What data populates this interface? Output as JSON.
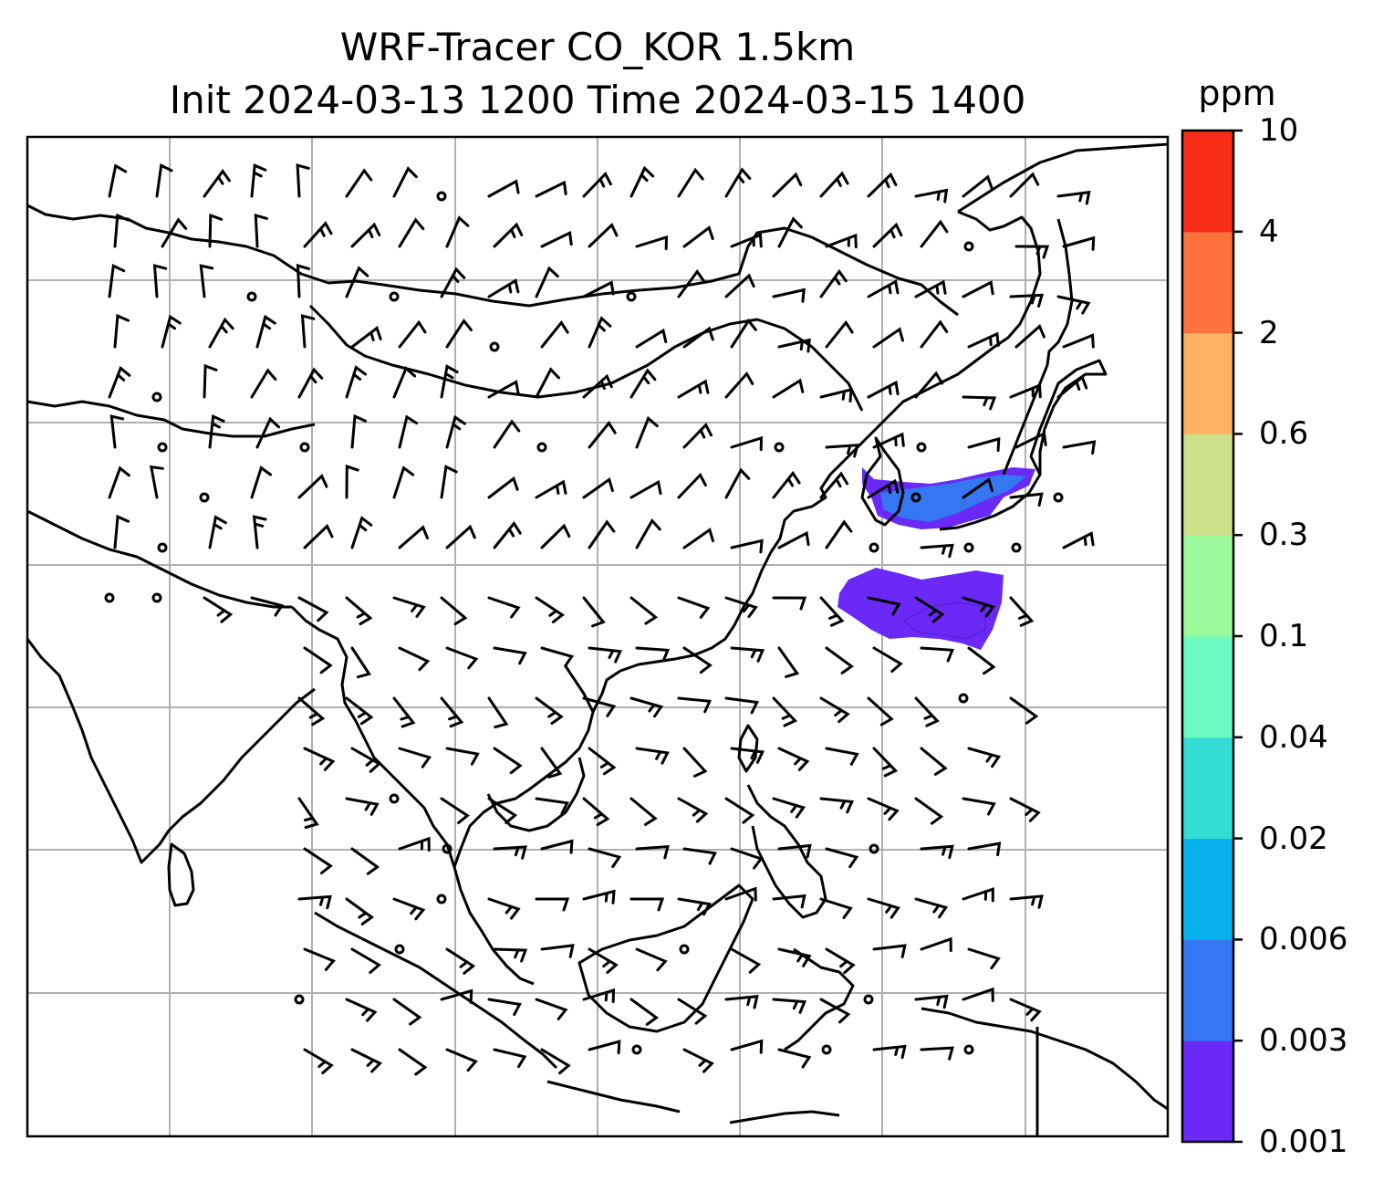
{
  "title": {
    "line1": "WRF-Tracer CO_KOR 1.5km",
    "line2": "Init 2024-03-13 1200 Time 2024-03-15 1400"
  },
  "colorbar": {
    "unit": "ppm",
    "ticks": [
      "0.001",
      "0.003",
      "0.006",
      "0.02",
      "0.04",
      "0.1",
      "0.3",
      "0.6",
      "2",
      "4",
      "10"
    ],
    "colors": [
      "#6a29f7",
      "#3576f2",
      "#07b2ec",
      "#33ddd4",
      "#6cf9c2",
      "#9dfa9b",
      "#cde08a",
      "#feb063",
      "#ff723c",
      "#f82b16"
    ]
  },
  "map": {
    "land_outline_color": "#000000",
    "gridline_color": "#b0b0b0",
    "plume_colors": [
      "#6a29f7",
      "#3576f2"
    ],
    "wind_barbs": "present"
  }
}
